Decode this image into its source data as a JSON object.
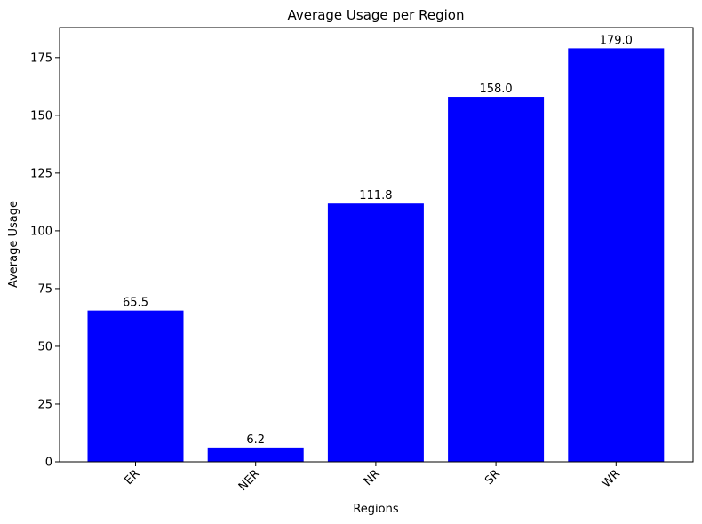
{
  "chart_data": {
    "type": "bar",
    "title": "Average Usage per Region",
    "xlabel": "Regions",
    "ylabel": "Average Usage",
    "categories": [
      "ER",
      "NER",
      "NR",
      "SR",
      "WR"
    ],
    "values": [
      65.5,
      6.2,
      111.8,
      158.0,
      179.0
    ],
    "value_labels": [
      "65.5",
      "6.2",
      "111.8",
      "158.0",
      "179.0"
    ],
    "yticks": [
      0,
      25,
      50,
      75,
      100,
      125,
      150,
      175
    ],
    "ylim": [
      0,
      188
    ],
    "bar_color": "#0000ff",
    "grid": false,
    "x_tick_rotation_deg": 45
  }
}
